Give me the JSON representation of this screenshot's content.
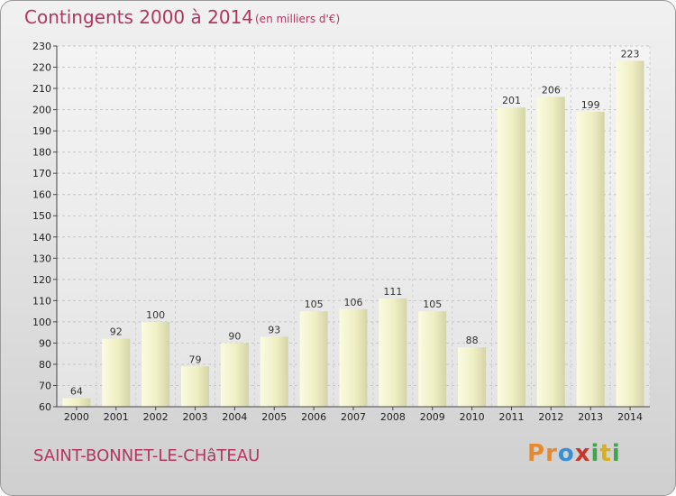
{
  "header": {
    "title": "Contingents 2000 à 2014",
    "subtitle": "(en milliers d'€)"
  },
  "footer": {
    "commune": "SAINT-BONNET-LE-CHâTEAU",
    "logo_letters": [
      "P",
      "r",
      "o",
      "x",
      "i",
      "t",
      "i"
    ],
    "logo_colors": [
      "#e8892d",
      "#e8892d",
      "#3a8fd4",
      "#c8372d",
      "#3fa64b",
      "#d4b028",
      "#3fa64b"
    ]
  },
  "chart_data": {
    "type": "bar",
    "categories": [
      "2000",
      "2001",
      "2002",
      "2003",
      "2004",
      "2005",
      "2006",
      "2007",
      "2008",
      "2009",
      "2010",
      "2011",
      "2012",
      "2013",
      "2014"
    ],
    "values": [
      64,
      92,
      100,
      79,
      90,
      93,
      105,
      106,
      111,
      105,
      88,
      201,
      206,
      199,
      223
    ],
    "title": "Contingents 2000 à 2014",
    "ylim": [
      60,
      230
    ],
    "yticks": [
      60,
      70,
      80,
      90,
      100,
      110,
      120,
      130,
      140,
      150,
      160,
      170,
      180,
      190,
      200,
      210,
      220,
      230
    ],
    "grid": true
  }
}
